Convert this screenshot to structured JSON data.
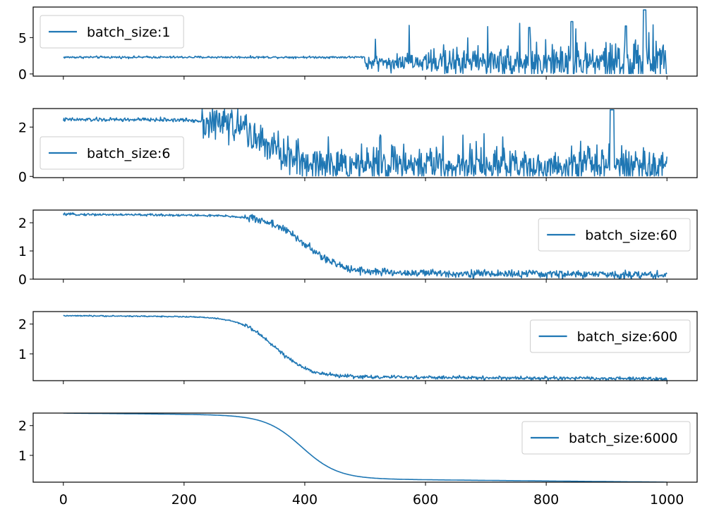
{
  "chart_data": [
    {
      "type": "line",
      "series": [
        {
          "name": "batch_size:1"
        }
      ],
      "ylim": [
        -0.3,
        9.2
      ],
      "yticks": [
        0,
        5
      ],
      "legend": "top-left",
      "color": "#1f77b4"
    },
    {
      "type": "line",
      "series": [
        {
          "name": "batch_size:6"
        }
      ],
      "ylim": [
        -0.05,
        2.75
      ],
      "yticks": [
        0,
        2
      ],
      "legend": "bottom-left",
      "color": "#1f77b4"
    },
    {
      "type": "line",
      "series": [
        {
          "name": "batch_size:60"
        }
      ],
      "ylim": [
        0.0,
        2.45
      ],
      "yticks": [
        0,
        1,
        2
      ],
      "legend": "top-right",
      "color": "#1f77b4"
    },
    {
      "type": "line",
      "series": [
        {
          "name": "batch_size:600"
        }
      ],
      "ylim": [
        0.1,
        2.42
      ],
      "yticks": [
        1,
        2
      ],
      "legend": "top-right",
      "color": "#1f77b4"
    },
    {
      "type": "line",
      "series": [
        {
          "name": "batch_size:6000"
        }
      ],
      "ylim": [
        0.1,
        2.42
      ],
      "yticks": [
        1,
        2
      ],
      "legend": "top-right",
      "color": "#1f77b4"
    }
  ],
  "shared_x": {
    "xlim": [
      -50,
      1050
    ],
    "xticks": [
      0,
      200,
      400,
      600,
      800,
      1000
    ],
    "xtick_labels": [
      "0",
      "200",
      "400",
      "600",
      "800",
      "1000"
    ]
  }
}
